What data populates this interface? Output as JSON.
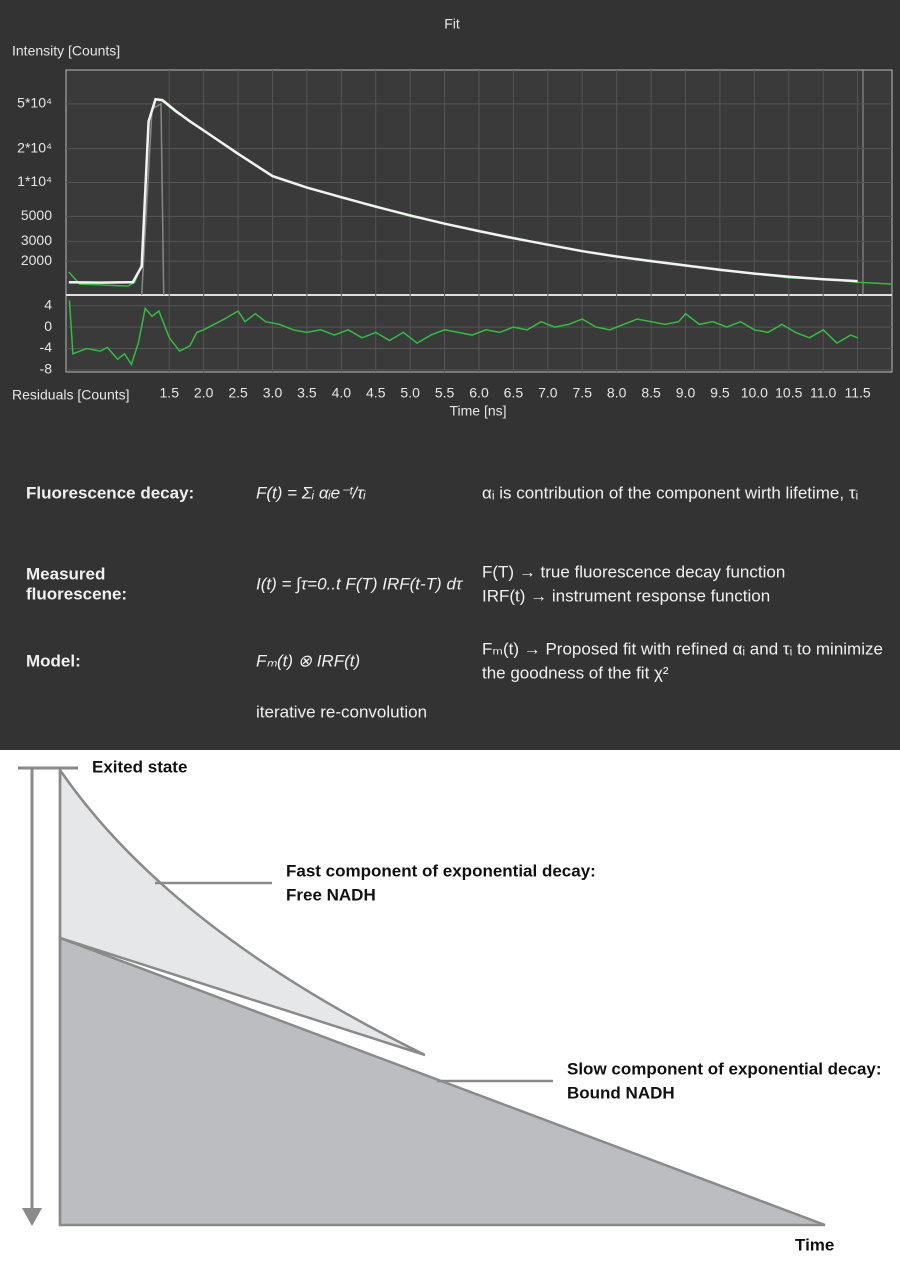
{
  "chart_data": [
    {
      "type": "line",
      "title": "Fit",
      "y_label": "Intensity [Counts]",
      "log_y": true,
      "grid": true,
      "xlim": [
        0,
        12
      ],
      "ylim": [
        1000,
        100000
      ],
      "yticks": [
        {
          "value": 2000,
          "label": "2000"
        },
        {
          "value": 3000,
          "label": "3000"
        },
        {
          "value": 5000,
          "label": "5000"
        },
        {
          "value": 10000,
          "label": "1*10⁴"
        },
        {
          "value": 20000,
          "label": "2*10⁴"
        },
        {
          "value": 50000,
          "label": "5*10⁴"
        }
      ],
      "series": [
        {
          "color": "#888888",
          "x": [
            1.1,
            1.25,
            1.38,
            1.42
          ],
          "values": [
            1000,
            45000,
            50000,
            1000
          ]
        },
        {
          "color": "#2fbf3f",
          "x": [
            0.04,
            0.2,
            0.5,
            0.9,
            1.0,
            1.1,
            1.2,
            1.3,
            1.4,
            1.6,
            1.8,
            2.0,
            2.5,
            3.0,
            3.5,
            4.0,
            4.5,
            5.0,
            5.5,
            6.0,
            6.5,
            7.0,
            7.5,
            8.0,
            8.5,
            9.0,
            9.5,
            10.0,
            10.5,
            11.0,
            11.5,
            12.0
          ],
          "values": [
            1600,
            1250,
            1230,
            1200,
            1300,
            1900,
            34000,
            54000,
            53000,
            42000,
            35500,
            28800,
            18200,
            11300,
            9100,
            7300,
            6200,
            5000,
            4350,
            3650,
            3250,
            2780,
            2480,
            2180,
            2020,
            1850,
            1650,
            1560,
            1420,
            1390,
            1300,
            1250
          ]
        },
        {
          "color": "#f2f2f2",
          "x": [
            0.04,
            0.5,
            0.97,
            1.1,
            1.2,
            1.3,
            1.4,
            1.6,
            1.8,
            2.0,
            2.5,
            3.0,
            3.5,
            4.0,
            4.5,
            5.0,
            5.5,
            6.0,
            6.5,
            7.0,
            7.5,
            8.0,
            8.5,
            9.0,
            9.5,
            10.0,
            10.5,
            11.0,
            11.5
          ],
          "values": [
            1300,
            1290,
            1300,
            1800,
            35000,
            55000,
            54000,
            43000,
            35000,
            29000,
            18000,
            11400,
            9000,
            7400,
            6100,
            5100,
            4300,
            3700,
            3200,
            2800,
            2450,
            2200,
            2000,
            1830,
            1680,
            1550,
            1450,
            1380,
            1330
          ]
        }
      ]
    },
    {
      "type": "line",
      "x_label": "Time [ns]",
      "y_label": "Residuals [Counts]",
      "grid": true,
      "xlim": [
        0,
        12
      ],
      "ylim": [
        -8.4,
        6
      ],
      "xticks": [
        1.5,
        {
          "value": 2,
          "label": "2.0"
        },
        2.5,
        {
          "value": 3,
          "label": "3.0"
        },
        3.5,
        {
          "value": 4,
          "label": "4.0"
        },
        4.5,
        {
          "value": 5,
          "label": "5.0"
        },
        5.5,
        {
          "value": 6,
          "label": "6.0"
        },
        6.5,
        {
          "value": 7,
          "label": "7.0"
        },
        7.5,
        {
          "value": 8,
          "label": "8.0"
        },
        8.5,
        {
          "value": 9,
          "label": "9.0"
        },
        9.5,
        {
          "value": 10,
          "label": "10.0"
        },
        10.5,
        {
          "value": 11,
          "label": "11.0"
        },
        11.5
      ],
      "yticks": [
        4,
        0,
        -4,
        -8
      ],
      "series": [
        {
          "color": "#2fbf3f",
          "x": [
            0.05,
            0.1,
            0.3,
            0.5,
            0.6,
            0.75,
            0.85,
            0.95,
            1.05,
            1.15,
            1.25,
            1.35,
            1.5,
            1.65,
            1.8,
            1.9,
            2.0,
            2.15,
            2.3,
            2.5,
            2.6,
            2.75,
            2.9,
            3.1,
            3.3,
            3.5,
            3.7,
            3.9,
            4.1,
            4.3,
            4.5,
            4.7,
            4.9,
            5.1,
            5.3,
            5.5,
            5.7,
            5.9,
            6.1,
            6.3,
            6.5,
            6.7,
            6.9,
            7.1,
            7.3,
            7.5,
            7.7,
            7.9,
            8.1,
            8.3,
            8.5,
            8.7,
            8.9,
            9.0,
            9.2,
            9.4,
            9.6,
            9.8,
            10.0,
            10.2,
            10.4,
            10.6,
            10.8,
            11.0,
            11.2,
            11.4,
            11.5
          ],
          "values": [
            5,
            -5,
            -4,
            -4.5,
            -3.8,
            -6,
            -5,
            -7,
            -3,
            3.5,
            2,
            3,
            -2,
            -4.5,
            -3.5,
            -1,
            -0.5,
            0.5,
            1.5,
            3,
            1,
            2.5,
            1,
            0.5,
            -0.5,
            -1,
            -0.5,
            -1.5,
            -0.5,
            -2,
            -1,
            -2.5,
            -1,
            -3,
            -1.5,
            -0.5,
            -1,
            -1.5,
            -0.5,
            -1,
            0,
            -0.5,
            1,
            0,
            0.5,
            1.5,
            0,
            -0.5,
            0.5,
            1.5,
            1,
            0.5,
            1,
            2.5,
            0.5,
            1,
            0,
            1,
            -0.5,
            -1,
            0.5,
            -1,
            -2,
            -0.5,
            -3,
            -1.5,
            -2
          ]
        }
      ]
    }
  ],
  "equations": [
    {
      "label": [
        "Fluorescence decay:"
      ],
      "formula": "F(t) = Σᵢ αᵢe⁻ᵗ/τᵢ",
      "description": [
        "αᵢ is contribution of the component wirth lifetime, τᵢ"
      ]
    },
    {
      "label": [
        "Measured",
        "fluorescene:"
      ],
      "formula": "I(t) = ∫τ=0..t F(T) IRF(t-T) dτ",
      "description": [
        "F(T) → true fluorescence decay function",
        "IRF(t) → instrument response function"
      ]
    },
    {
      "label": [
        "Model:"
      ],
      "formula": "Fₘ(t) ⊗ IRF(t)",
      "description": [
        "Fₘ(t) → Proposed fit with refined αᵢ and τᵢ to minimize",
        "the goodness of the fit χ²"
      ]
    }
  ],
  "note": "iterative re-convolution",
  "diagram": {
    "top_label": "Exited state",
    "fast": [
      "Fast component of exponential decay:",
      "Free NADH"
    ],
    "slow": [
      "Slow component of exponential decay:",
      "Bound NADH"
    ],
    "axis_label": "Time"
  }
}
